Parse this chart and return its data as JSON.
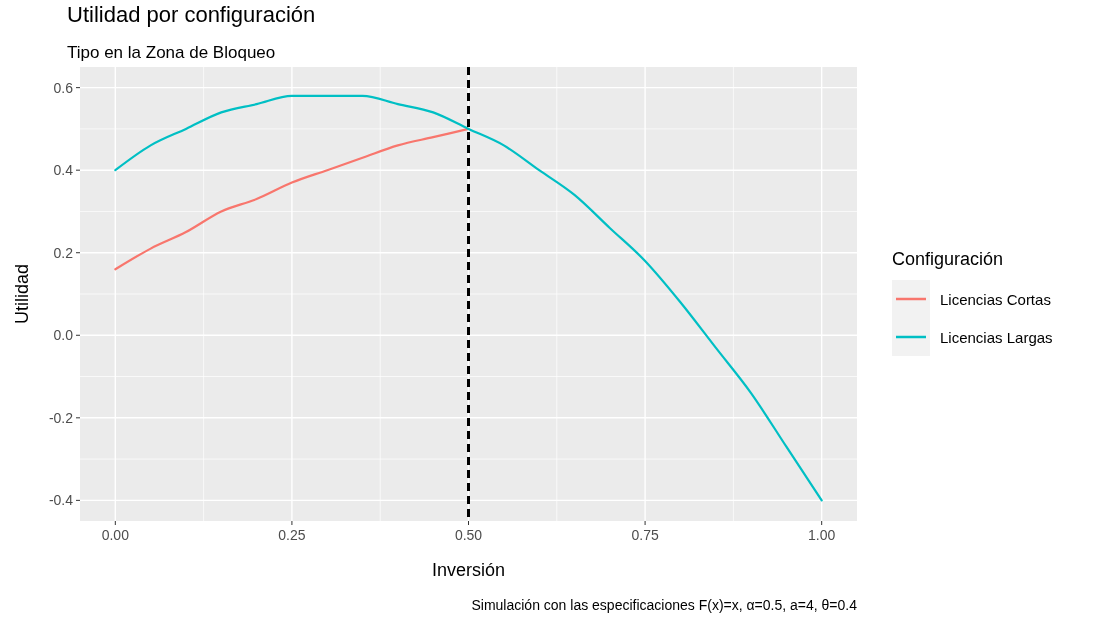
{
  "chart_data": {
    "type": "line",
    "title": "Utilidad por configuración",
    "subtitle": "Tipo en la Zona de Bloqueo",
    "xlabel": "Inversión",
    "ylabel": "Utilidad",
    "legend_title": "Configuración",
    "legend": "right",
    "grid": true,
    "line_style": "solid",
    "marker": "none",
    "xlim": [
      -0.05,
      1.05
    ],
    "xticks": [
      {
        "value": 0,
        "label": "0.00"
      },
      {
        "value": 0.25,
        "label": "0.25"
      },
      {
        "value": 0.5,
        "label": "0.50"
      },
      {
        "value": 0.75,
        "label": "0.75"
      },
      {
        "value": 1,
        "label": "1.00"
      }
    ],
    "ylim": [
      -0.45,
      0.65
    ],
    "yticks": [
      {
        "value": -0.4,
        "label": "-0.4"
      },
      {
        "value": -0.2,
        "label": "-0.2"
      },
      {
        "value": 0,
        "label": "0.0"
      },
      {
        "value": 0.2,
        "label": "0.2"
      },
      {
        "value": 0.4,
        "label": "0.4"
      },
      {
        "value": 0.6,
        "label": "0.6"
      }
    ],
    "series": [
      {
        "name": "Licencias Cortas",
        "color": "#f8766d",
        "x": [
          0,
          0.05,
          0.1,
          0.15,
          0.2,
          0.25,
          0.3,
          0.35,
          0.4,
          0.45,
          0.5
        ],
        "values": [
          0.16,
          0.21,
          0.25,
          0.3,
          0.33,
          0.37,
          0.4,
          0.43,
          0.46,
          0.48,
          0.5
        ]
      },
      {
        "name": "Licencias Largas",
        "color": "#00bfc4",
        "x": [
          0,
          0.05,
          0.1,
          0.15,
          0.2,
          0.25,
          0.3,
          0.35,
          0.4,
          0.45,
          0.5,
          0.55,
          0.6,
          0.65,
          0.7,
          0.75,
          0.8,
          0.85,
          0.9,
          0.95,
          1
        ],
        "values": [
          0.4,
          0.46,
          0.5,
          0.54,
          0.56,
          0.58,
          0.58,
          0.58,
          0.56,
          0.54,
          0.5,
          0.46,
          0.4,
          0.34,
          0.26,
          0.18,
          0.08,
          -0.03,
          -0.14,
          -0.27,
          -0.4
        ]
      }
    ],
    "ref_lines": [
      {
        "axis": "x",
        "value": 0.5,
        "color": "#000000",
        "line_style": "dashed"
      }
    ],
    "annotations": [
      "Simulación con las especificaciones F(x)=x, α=0.5, a=4, θ=0.4"
    ]
  }
}
